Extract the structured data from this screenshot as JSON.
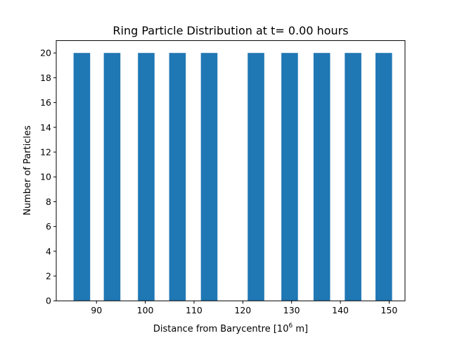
{
  "chart_data": {
    "type": "bar",
    "title": "Ring Particle Distribution at t= 0.00 hours",
    "xlabel": {
      "prefix": "Distance from Barycentre [10",
      "sup": "6",
      "suffix": " m]"
    },
    "ylabel": "Number of Particles",
    "xlim": [
      81.75,
      153.25
    ],
    "ylim": [
      0,
      21
    ],
    "grid": false,
    "x_ticks": [
      90,
      100,
      110,
      120,
      130,
      140,
      150
    ],
    "y_ticks": [
      0,
      2,
      4,
      6,
      8,
      10,
      12,
      14,
      16,
      18,
      20
    ],
    "bar_width": 3.4,
    "bar_color": "#1f77b4",
    "bars": [
      {
        "x": 87.0,
        "value": 20
      },
      {
        "x": 93.2,
        "value": 20
      },
      {
        "x": 100.2,
        "value": 20
      },
      {
        "x": 106.6,
        "value": 20
      },
      {
        "x": 113.1,
        "value": 20
      },
      {
        "x": 119.5,
        "value": 0
      },
      {
        "x": 122.7,
        "value": 20
      },
      {
        "x": 129.6,
        "value": 20
      },
      {
        "x": 136.2,
        "value": 20
      },
      {
        "x": 142.6,
        "value": 20
      },
      {
        "x": 148.9,
        "value": 20
      }
    ]
  }
}
